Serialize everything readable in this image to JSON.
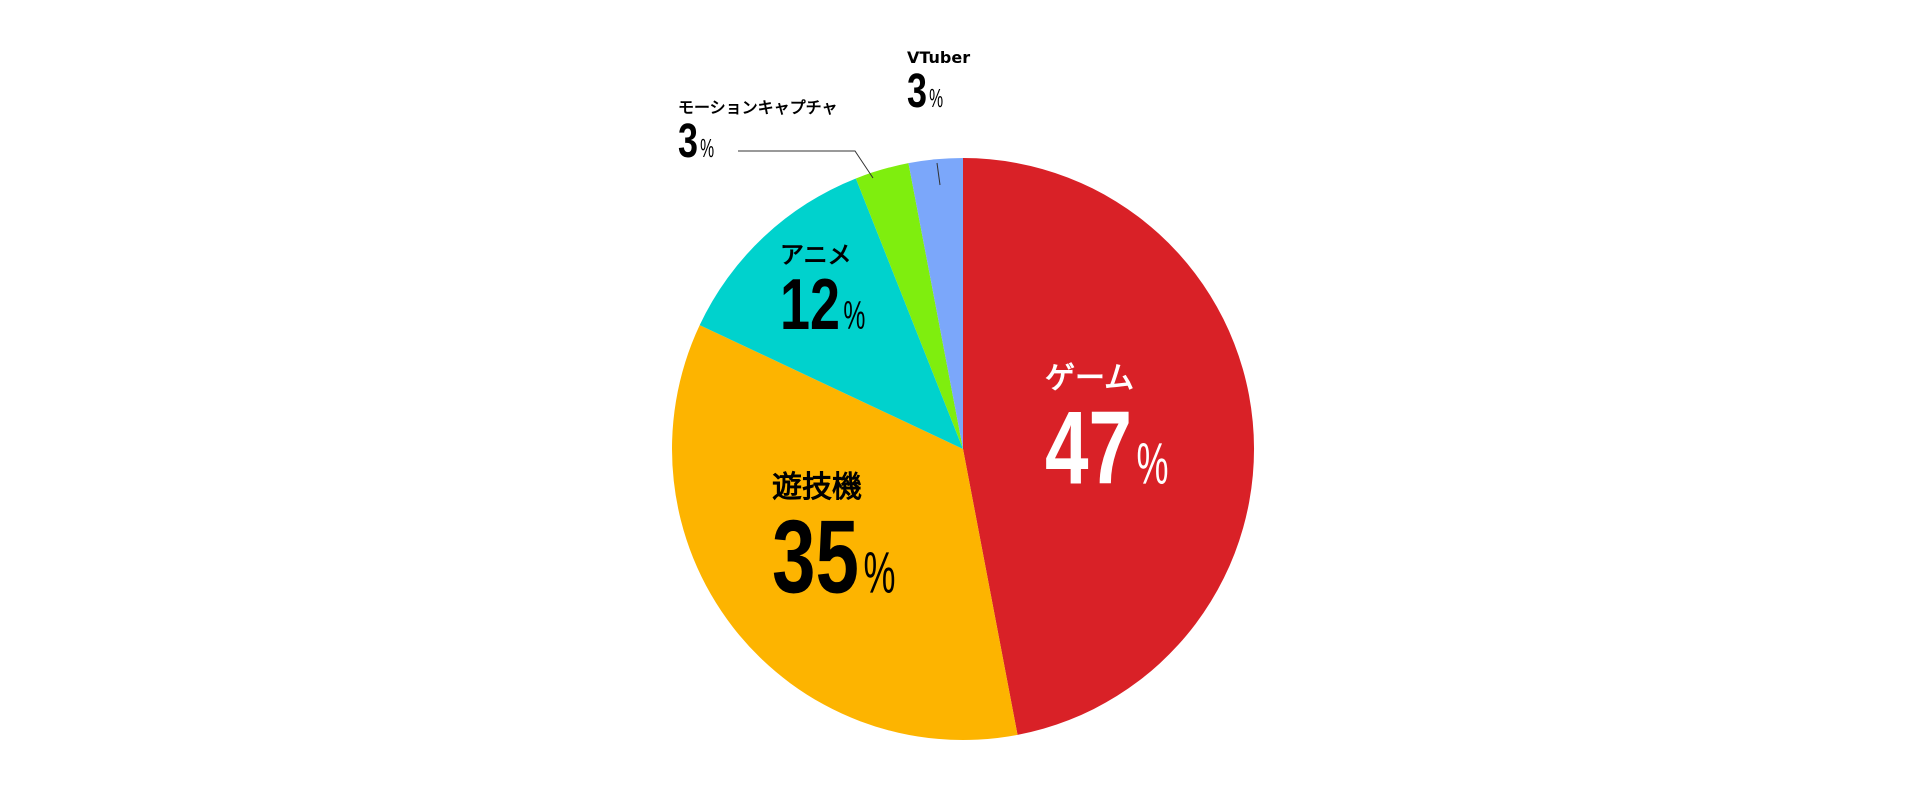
{
  "chart_data": {
    "type": "pie",
    "title": "",
    "start": "12 o'clock",
    "direction": "clockwise",
    "legend": "none",
    "slices": [
      {
        "label": "ゲーム",
        "value": 47,
        "display": "47",
        "unit": "%",
        "color": "#D92127",
        "text_color": "#ffffff"
      },
      {
        "label": "遊技機",
        "value": 35,
        "display": "35",
        "unit": "%",
        "color": "#FDB400",
        "text_color": "#000000"
      },
      {
        "label": "アニメ",
        "value": 12,
        "display": "12",
        "unit": "%",
        "color": "#00D2CD",
        "text_color": "#000000"
      },
      {
        "label": "モーションキャプチャ",
        "value": 3,
        "display": "3",
        "unit": "%",
        "color": "#7FEE0E",
        "text_color": "#000000"
      },
      {
        "label": "VTuber",
        "value": 3,
        "display": "3",
        "unit": "%",
        "color": "#7BA7FA",
        "text_color": "#000000"
      }
    ]
  }
}
